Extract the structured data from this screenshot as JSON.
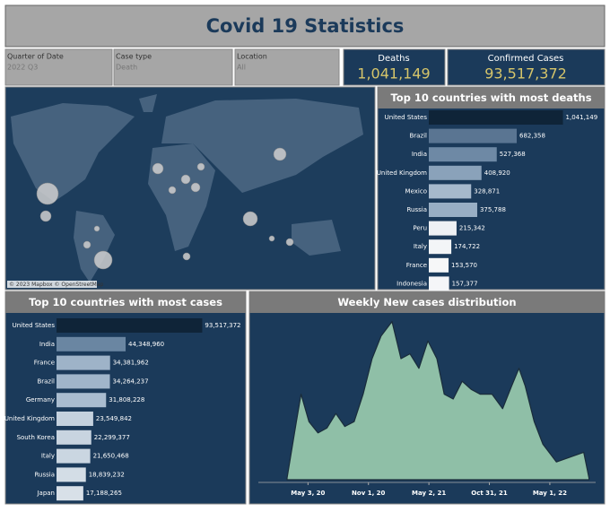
{
  "header": {
    "title": "Covid 19 Statistics"
  },
  "filters": [
    {
      "label": "Quarter of Date",
      "value": "2022 Q3"
    },
    {
      "label": "Case type",
      "value": "Death"
    },
    {
      "label": "Location",
      "value": "All"
    }
  ],
  "kpis": [
    {
      "label": "Deaths",
      "value": "1,041,149"
    },
    {
      "label": "Confirmed Cases",
      "value": "93,517,372"
    }
  ],
  "map": {
    "attribution": "© 2023 Mapbox © OpenStreetMap"
  },
  "chart_data": [
    {
      "type": "hbar",
      "title": "Top 10 countries with most deaths",
      "categories": [
        "United States",
        "Brazil",
        "India",
        "United Kingdom",
        "Mexico",
        "Russia",
        "Peru",
        "Italy",
        "France",
        "Indonesia"
      ],
      "values": [
        1041149,
        682358,
        527368,
        408920,
        328871,
        375788,
        215342,
        174722,
        153570,
        157377
      ],
      "value_labels": [
        "1,041,149",
        "682,358",
        "527,368",
        "408,920",
        "328,871",
        "375,788",
        "215,342",
        "174,722",
        "153,570",
        "157,377"
      ],
      "colors": [
        "#0f2438",
        "#5a7592",
        "#6e89a5",
        "#8aa2ba",
        "#a6b9cc",
        "#98aec4",
        "#eef1f4",
        "#f3f5f7",
        "#f6f7f8",
        "#f5f6f8"
      ],
      "xlim": [
        0,
        1100000
      ]
    },
    {
      "type": "hbar",
      "title": "Top 10 countries with most cases",
      "categories": [
        "United States",
        "India",
        "France",
        "Brazil",
        "Germany",
        "United Kingdom",
        "South Korea",
        "Italy",
        "Russia",
        "Japan"
      ],
      "values": [
        93517372,
        44348960,
        34381962,
        34264237,
        31808228,
        23549842,
        22299377,
        21650468,
        18839232,
        17188265
      ],
      "value_labels": [
        "93,517,372",
        "44,348,960",
        "34,381,962",
        "34,264,237",
        "31,808,228",
        "23,549,842",
        "22,299,377",
        "21,650,468",
        "18,839,232",
        "17,188,265"
      ],
      "colors": [
        "#0f2438",
        "#6a86a2",
        "#9eb3c8",
        "#a0b5ca",
        "#a9bccf",
        "#c4d1de",
        "#c8d4e0",
        "#cad6e1",
        "#d3dde6",
        "#d8e0e8"
      ],
      "xlim": [
        0,
        95000000
      ]
    },
    {
      "type": "area",
      "title": "Weekly New cases distribution",
      "color": "#8fbfa7",
      "x": [
        "2020-03-01",
        "2020-03-29",
        "2020-04-12",
        "2020-05-06",
        "2020-06-02",
        "2020-06-29",
        "2020-07-26",
        "2020-08-22",
        "2020-09-19",
        "2020-10-16",
        "2020-11-12",
        "2020-12-09",
        "2021-01-11",
        "2021-02-07",
        "2021-03-06",
        "2021-04-02",
        "2021-04-29",
        "2021-05-26",
        "2021-06-17",
        "2021-07-14",
        "2021-08-10",
        "2021-09-06",
        "2021-10-03",
        "2021-11-08",
        "2021-12-10",
        "2022-01-06",
        "2022-01-28",
        "2022-02-16",
        "2022-03-15",
        "2022-04-10",
        "2022-05-21",
        "2022-07-01",
        "2022-08-11",
        "2022-08-27"
      ],
      "values": [
        1,
        36,
        53,
        36,
        29,
        32,
        41,
        33,
        36,
        53,
        75,
        89,
        98,
        75,
        78,
        69,
        86,
        75,
        53,
        50,
        61,
        56,
        53,
        53,
        44,
        58,
        69,
        58,
        36,
        22,
        11,
        14,
        17,
        1
      ],
      "xlim": [
        "2020-03-01",
        "2022-08-28"
      ],
      "xticks": [
        {
          "value": "2020-05-03",
          "label": "May 3, 20"
        },
        {
          "value": "2020-11-01",
          "label": "Nov 1, 20"
        },
        {
          "value": "2021-05-02",
          "label": "May 2, 21"
        },
        {
          "value": "2021-10-31",
          "label": "Oct 31, 21"
        },
        {
          "value": "2022-05-01",
          "label": "May 1, 22"
        }
      ],
      "ylim": [
        0,
        100
      ]
    }
  ]
}
